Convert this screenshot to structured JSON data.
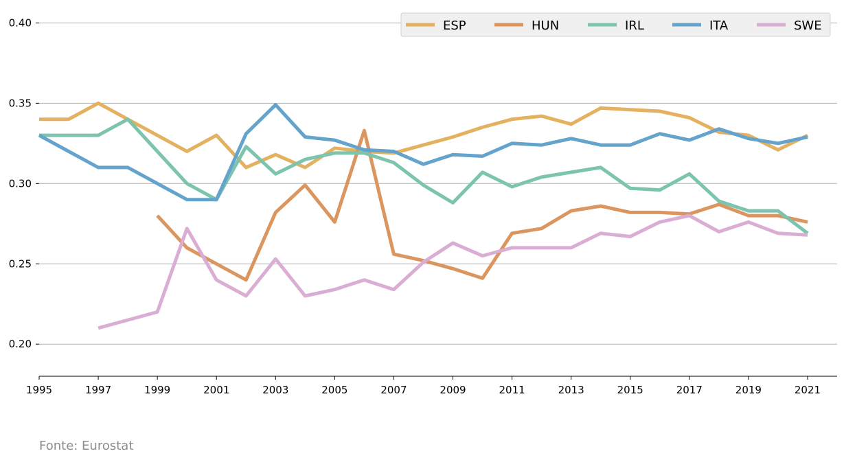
{
  "source_note": "Fonte: Eurostat",
  "chart_data": {
    "type": "line",
    "x": [
      1995,
      1996,
      1997,
      1998,
      1999,
      2000,
      2001,
      2002,
      2003,
      2004,
      2005,
      2006,
      2007,
      2008,
      2009,
      2010,
      2011,
      2012,
      2013,
      2014,
      2015,
      2016,
      2017,
      2018,
      2019,
      2020,
      2021
    ],
    "xticks": [
      1995,
      1997,
      1999,
      2001,
      2003,
      2005,
      2007,
      2009,
      2011,
      2013,
      2015,
      2017,
      2019,
      2021
    ],
    "yticks": [
      0.2,
      0.25,
      0.3,
      0.35,
      0.4
    ],
    "xlim": [
      1995,
      2022
    ],
    "ylim": [
      0.18,
      0.41
    ],
    "grid": "horizontal",
    "legend_position": "top-right",
    "series": [
      {
        "name": "ESP",
        "color": "#E3B15F",
        "values": [
          0.34,
          0.34,
          0.35,
          0.34,
          0.33,
          0.32,
          0.33,
          0.31,
          0.318,
          0.31,
          0.322,
          0.32,
          0.319,
          0.324,
          0.329,
          0.335,
          0.34,
          0.342,
          0.337,
          0.347,
          0.346,
          0.345,
          0.341,
          0.332,
          0.33,
          0.321,
          0.33
        ]
      },
      {
        "name": "HUN",
        "color": "#DB9660",
        "values": [
          null,
          null,
          null,
          null,
          0.28,
          0.26,
          0.25,
          0.24,
          0.282,
          0.299,
          0.276,
          0.333,
          0.256,
          0.252,
          0.247,
          0.241,
          0.269,
          0.272,
          0.283,
          0.286,
          0.282,
          0.282,
          0.281,
          0.287,
          0.28,
          0.28,
          0.276
        ]
      },
      {
        "name": "IRL",
        "color": "#7DC4AE",
        "values": [
          0.33,
          0.33,
          0.33,
          0.34,
          0.32,
          0.3,
          0.29,
          0.323,
          0.306,
          0.315,
          0.319,
          0.319,
          0.313,
          0.299,
          0.288,
          0.307,
          0.298,
          0.304,
          0.307,
          0.31,
          0.297,
          0.296,
          0.306,
          0.289,
          0.283,
          0.283,
          0.269
        ]
      },
      {
        "name": "ITA",
        "color": "#63A3CC",
        "values": [
          0.33,
          0.32,
          0.31,
          0.31,
          0.3,
          0.29,
          0.29,
          0.331,
          0.349,
          0.329,
          0.327,
          0.321,
          0.32,
          0.312,
          0.318,
          0.317,
          0.325,
          0.324,
          0.328,
          0.324,
          0.324,
          0.331,
          0.327,
          0.334,
          0.328,
          0.325,
          0.329
        ]
      },
      {
        "name": "SWE",
        "color": "#DAAED4",
        "values": [
          null,
          null,
          0.21,
          0.215,
          0.22,
          0.272,
          0.24,
          0.23,
          0.253,
          0.23,
          0.234,
          0.24,
          0.234,
          0.251,
          0.263,
          0.255,
          0.26,
          0.26,
          0.26,
          0.269,
          0.267,
          0.276,
          0.28,
          0.27,
          0.276,
          0.269,
          0.268
        ]
      }
    ]
  }
}
